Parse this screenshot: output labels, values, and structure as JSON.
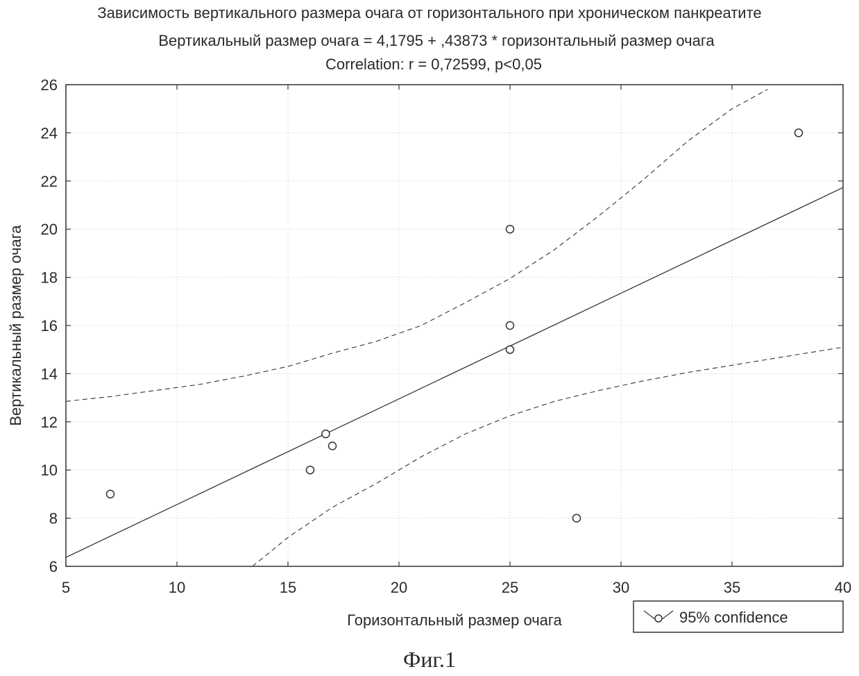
{
  "chart_data": {
    "type": "scatter",
    "title": "Зависимость вертикального размера очага от горизонтального при хроническом панкреатите",
    "subtitle": "Вертикальный размер очага = 4,1795 + ,43873 * горизонтальный размер очага",
    "annotation": "Correlation: r = 0,72599, p<0,05",
    "xlabel": "Горизонтальный размер очага",
    "ylabel": "Вертикальный размер очага",
    "xlim": [
      5,
      40
    ],
    "ylim": [
      6,
      26
    ],
    "x_ticks": [
      "5",
      "10",
      "15",
      "20",
      "25",
      "30",
      "35",
      "40"
    ],
    "y_ticks": [
      "6",
      "8",
      "10",
      "12",
      "14",
      "16",
      "18",
      "20",
      "22",
      "24",
      "26"
    ],
    "grid": true,
    "legend_position": "bottom-right",
    "legend_label": "95% confidence",
    "points": [
      {
        "x": 7,
        "y": 9
      },
      {
        "x": 16,
        "y": 10
      },
      {
        "x": 16.7,
        "y": 11.5
      },
      {
        "x": 17,
        "y": 11
      },
      {
        "x": 25,
        "y": 20
      },
      {
        "x": 25,
        "y": 16
      },
      {
        "x": 25,
        "y": 15
      },
      {
        "x": 28,
        "y": 8
      },
      {
        "x": 38,
        "y": 24
      }
    ],
    "regression": {
      "intercept": 4.1795,
      "slope": 0.43873
    },
    "confidence_upper": [
      {
        "x": 5,
        "y": 12.85
      },
      {
        "x": 7,
        "y": 13.05
      },
      {
        "x": 9,
        "y": 13.3
      },
      {
        "x": 11,
        "y": 13.55
      },
      {
        "x": 13,
        "y": 13.9
      },
      {
        "x": 15,
        "y": 14.3
      },
      {
        "x": 17,
        "y": 14.85
      },
      {
        "x": 19,
        "y": 15.35
      },
      {
        "x": 21,
        "y": 16.0
      },
      {
        "x": 23,
        "y": 16.95
      },
      {
        "x": 25,
        "y": 17.95
      },
      {
        "x": 27,
        "y": 19.15
      },
      {
        "x": 29,
        "y": 20.55
      },
      {
        "x": 31,
        "y": 22.05
      },
      {
        "x": 33,
        "y": 23.65
      },
      {
        "x": 35,
        "y": 25.0
      },
      {
        "x": 36.6,
        "y": 25.8
      }
    ],
    "confidence_lower": [
      {
        "x": 13.4,
        "y": 6.0
      },
      {
        "x": 15,
        "y": 7.2
      },
      {
        "x": 17,
        "y": 8.45
      },
      {
        "x": 19,
        "y": 9.45
      },
      {
        "x": 21,
        "y": 10.55
      },
      {
        "x": 23,
        "y": 11.5
      },
      {
        "x": 25,
        "y": 12.25
      },
      {
        "x": 27,
        "y": 12.85
      },
      {
        "x": 29,
        "y": 13.3
      },
      {
        "x": 31,
        "y": 13.7
      },
      {
        "x": 33,
        "y": 14.05
      },
      {
        "x": 35,
        "y": 14.35
      },
      {
        "x": 37,
        "y": 14.65
      },
      {
        "x": 40,
        "y": 15.1
      }
    ],
    "colors": {
      "axis": "#333333",
      "grid": "#c8c8c8",
      "line": "#333333",
      "point": "#333333"
    }
  },
  "figure_caption": "Фиг.1"
}
